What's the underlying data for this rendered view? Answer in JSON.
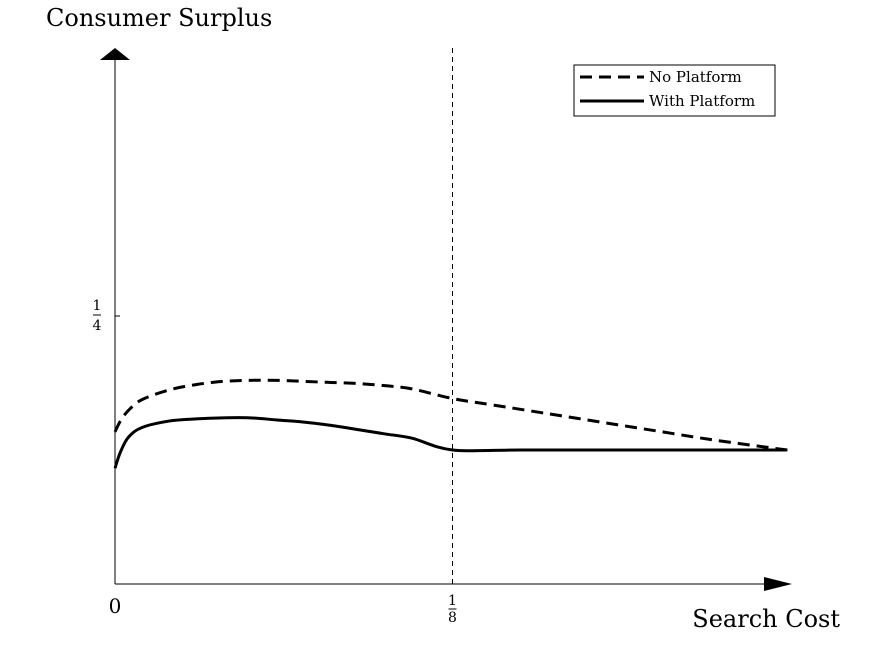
{
  "chart_data": {
    "type": "line",
    "title": "",
    "ylabel": "Consumer Surplus",
    "xlabel": "Search Cost",
    "x_ticks": [
      {
        "value": 0,
        "label": "0"
      },
      {
        "value": 0.125,
        "num": "1",
        "den": "8"
      }
    ],
    "y_ticks": [
      {
        "value": 0.25,
        "num": "1",
        "den": "4"
      }
    ],
    "xlim": [
      0,
      0.25
    ],
    "ylim": [
      0,
      0.5
    ],
    "vline": {
      "x": 0.125,
      "style": "dashed"
    },
    "legend": {
      "placement": "top-right"
    },
    "series": [
      {
        "name": "No Platform",
        "style": "dashed",
        "x": [
          0,
          0.002,
          0.005,
          0.01,
          0.02,
          0.03,
          0.04,
          0.05,
          0.06,
          0.07,
          0.08,
          0.09,
          0.1,
          0.11,
          0.125,
          0.14,
          0.16,
          0.18,
          0.2,
          0.22,
          0.24,
          0.249
        ],
        "y": [
          0.142,
          0.152,
          0.162,
          0.172,
          0.181,
          0.186,
          0.189,
          0.19,
          0.19,
          0.189,
          0.188,
          0.187,
          0.185,
          0.182,
          0.173,
          0.167,
          0.159,
          0.151,
          0.143,
          0.135,
          0.128,
          0.125
        ]
      },
      {
        "name": "With Platform",
        "style": "solid",
        "x": [
          0,
          0.002,
          0.005,
          0.01,
          0.02,
          0.03,
          0.04,
          0.05,
          0.06,
          0.07,
          0.08,
          0.09,
          0.1,
          0.11,
          0.125,
          0.15,
          0.2,
          0.249
        ],
        "y": [
          0.108,
          0.123,
          0.137,
          0.146,
          0.152,
          0.154,
          0.155,
          0.155,
          0.153,
          0.151,
          0.148,
          0.144,
          0.14,
          0.136,
          0.125,
          0.125,
          0.125,
          0.125
        ]
      }
    ]
  }
}
